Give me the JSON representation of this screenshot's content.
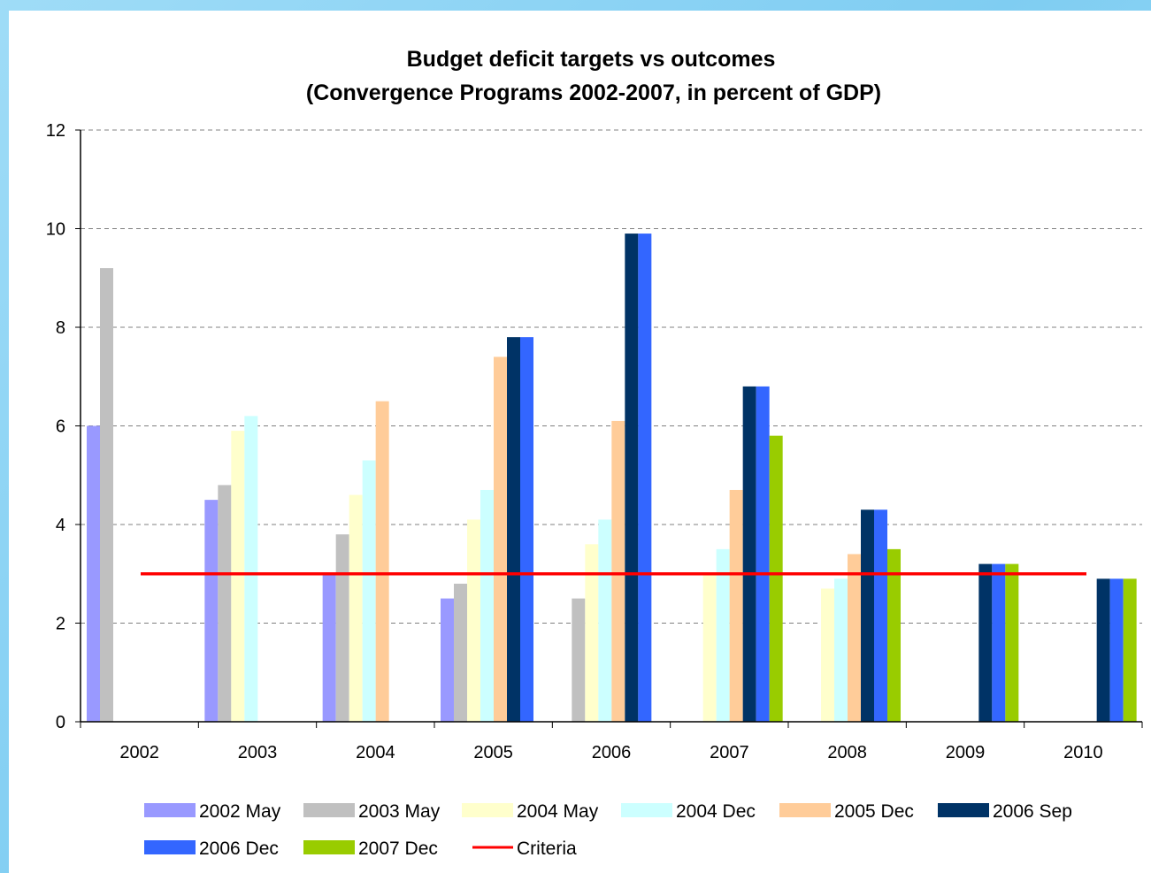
{
  "chart_data": {
    "type": "bar",
    "title": "Budget deficit targets vs outcomes",
    "subtitle": "(Convergence Programs 2002-2007, in percent of GDP)",
    "xlabel": "",
    "ylabel": "",
    "ylim": [
      0,
      12
    ],
    "yticks": [
      0,
      2,
      4,
      6,
      8,
      10,
      12
    ],
    "grid": true,
    "legend_position": "bottom",
    "categories": [
      "2002",
      "2003",
      "2004",
      "2005",
      "2006",
      "2007",
      "2008",
      "2009",
      "2010"
    ],
    "series": [
      {
        "name": "2002 May",
        "color": "#9999ff",
        "values": [
          6.0,
          4.5,
          3.0,
          2.5,
          null,
          null,
          null,
          null,
          null
        ]
      },
      {
        "name": "2003 May",
        "color": "#c0c0c0",
        "values": [
          9.2,
          4.8,
          3.8,
          2.8,
          2.5,
          null,
          null,
          null,
          null
        ]
      },
      {
        "name": "2004 May",
        "color": "#ffffcc",
        "values": [
          null,
          5.9,
          4.6,
          4.1,
          3.6,
          3.0,
          2.7,
          null,
          null
        ]
      },
      {
        "name": "2004 Dec",
        "color": "#ccffff",
        "values": [
          null,
          6.2,
          5.3,
          4.7,
          4.1,
          3.5,
          2.9,
          null,
          null
        ]
      },
      {
        "name": "2005 Dec",
        "color": "#ffcc99",
        "values": [
          null,
          null,
          6.5,
          7.4,
          6.1,
          4.7,
          3.4,
          null,
          null
        ]
      },
      {
        "name": "2006 Sep",
        "color": "#003366",
        "values": [
          null,
          null,
          null,
          7.8,
          9.9,
          6.8,
          4.3,
          3.2,
          2.9
        ]
      },
      {
        "name": "2006 Dec",
        "color": "#3366ff",
        "values": [
          null,
          null,
          null,
          7.8,
          9.9,
          6.8,
          4.3,
          3.2,
          2.9
        ]
      },
      {
        "name": "2007 Dec",
        "color": "#99cc00",
        "values": [
          null,
          null,
          null,
          null,
          null,
          5.8,
          3.5,
          3.2,
          2.9
        ]
      }
    ],
    "reference_line": {
      "name": "Criteria",
      "value": 3.0,
      "color": "#ff0000"
    }
  }
}
